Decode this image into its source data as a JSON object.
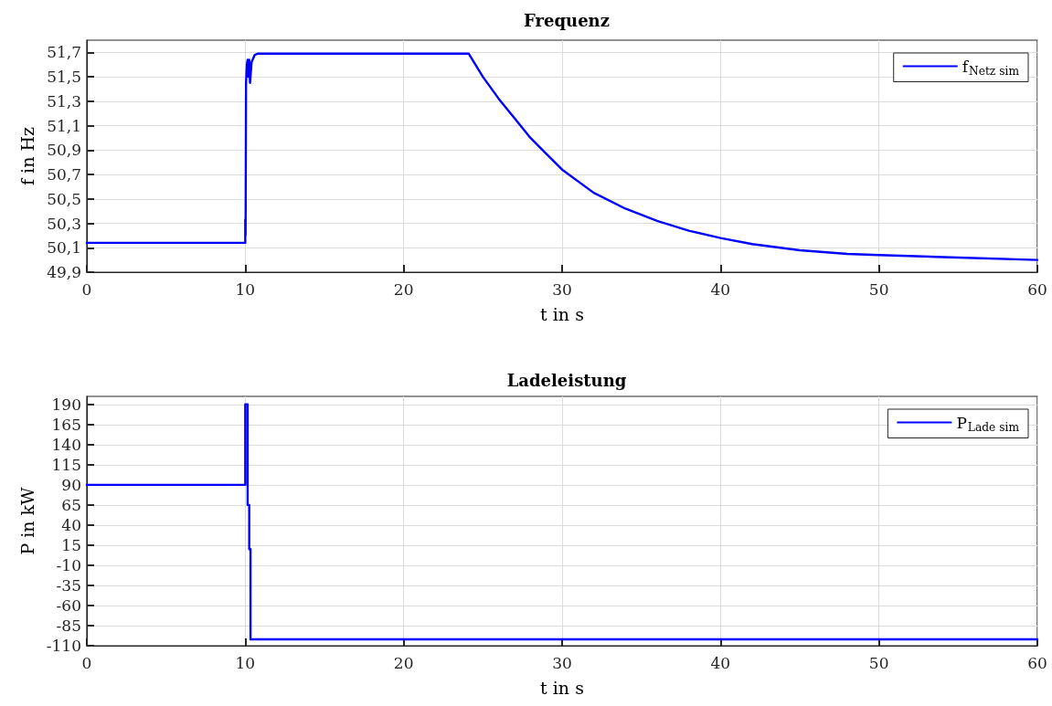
{
  "chart_data": [
    {
      "type": "line",
      "title": "Frequenz",
      "xlabel": "t in s",
      "ylabel": "f in Hz",
      "x": [
        0,
        10,
        10,
        10.02,
        10.05,
        10.1,
        10.15,
        10.2,
        10.25,
        10.3,
        10.4,
        10.6,
        10.8,
        24.1,
        25,
        26,
        27,
        28,
        29,
        30,
        32,
        34,
        36,
        38,
        40,
        42,
        45,
        48,
        50,
        55,
        60
      ],
      "series": [
        {
          "name": "f$_{Netz sim}$",
          "color": "#0000ff",
          "values": [
            50.14,
            50.14,
            50.33,
            50.2,
            51.45,
            51.6,
            51.64,
            51.5,
            51.64,
            51.45,
            51.62,
            51.68,
            51.69,
            51.69,
            51.5,
            51.32,
            51.16,
            51.0,
            50.87,
            50.74,
            50.55,
            50.42,
            50.32,
            50.24,
            50.18,
            50.13,
            50.08,
            50.05,
            50.04,
            50.02,
            50.0
          ]
        }
      ],
      "xlim": [
        0,
        60
      ],
      "xticks": [
        0,
        10,
        20,
        30,
        40,
        50,
        60
      ],
      "ylim": [
        49.9,
        51.8
      ],
      "yticks": [
        {
          "value": 49.9,
          "label": "49,9"
        },
        {
          "value": 50.1,
          "label": "50,1"
        },
        {
          "value": 50.3,
          "label": "50,3"
        },
        {
          "value": 50.5,
          "label": "50,5"
        },
        {
          "value": 50.7,
          "label": "50,7"
        },
        {
          "value": 50.9,
          "label": "50,9"
        },
        {
          "value": 51.1,
          "label": "51,1"
        },
        {
          "value": 51.3,
          "label": "51,3"
        },
        {
          "value": 51.5,
          "label": "51,5"
        },
        {
          "value": 51.7,
          "label": "51,7"
        }
      ],
      "grid": true,
      "legend": "top right",
      "marker": "none",
      "line_style": "solid"
    },
    {
      "type": "line",
      "title": "Ladeleistung",
      "xlabel": "t in s",
      "ylabel": "P in kW",
      "x": [
        0,
        10,
        10,
        10.15,
        10.15,
        10.25,
        10.25,
        10.33,
        10.33,
        60
      ],
      "series": [
        {
          "name": "P$_{Lade sim}$",
          "color": "#0000ff",
          "values": [
            90,
            90,
            190,
            190,
            65,
            65,
            10,
            10,
            -102,
            -102
          ]
        }
      ],
      "xlim": [
        0,
        60
      ],
      "xticks": [
        0,
        10,
        20,
        30,
        40,
        50,
        60
      ],
      "ylim": [
        -110,
        200
      ],
      "yticks": [
        -110,
        -85,
        -60,
        -35,
        -10,
        15,
        40,
        65,
        90,
        115,
        140,
        165,
        190
      ],
      "grid": true,
      "legend": "top right",
      "marker": "none",
      "line_style": "solid"
    }
  ]
}
